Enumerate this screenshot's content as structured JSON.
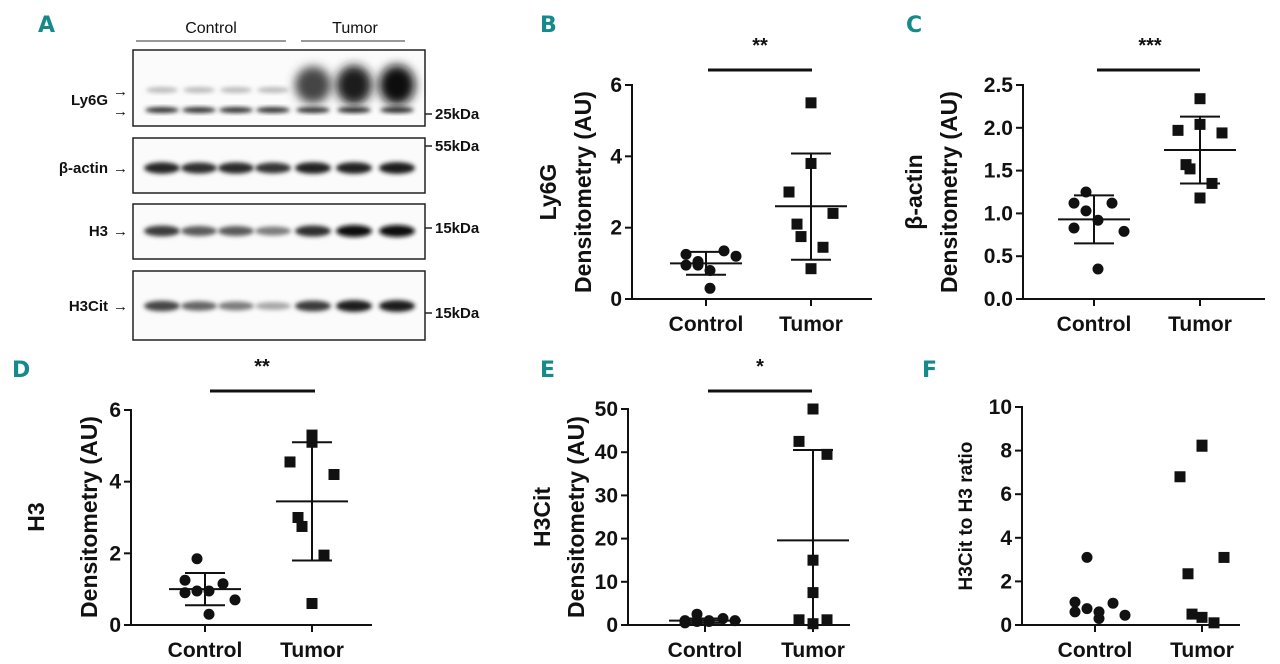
{
  "panel_letters": [
    "A",
    "B",
    "C",
    "D",
    "E",
    "F"
  ],
  "blot": {
    "groups": [
      "Control",
      "Tumor"
    ],
    "lanes": {
      "control": 4,
      "tumor": 3
    },
    "rows": [
      {
        "label": "Ly6G",
        "marker": "25kDa",
        "intensity": [
          0.35,
          0.35,
          0.33,
          0.3,
          0.75,
          0.95,
          1.0
        ]
      },
      {
        "label": "β-actin",
        "marker": "55kDa",
        "intensity": [
          0.9,
          0.85,
          0.88,
          0.82,
          0.92,
          0.92,
          0.95
        ]
      },
      {
        "label": "H3",
        "marker": "15kDa",
        "intensity": [
          0.8,
          0.65,
          0.65,
          0.5,
          0.85,
          1.0,
          1.0
        ]
      },
      {
        "label": "H3Cit",
        "marker": "15kDa",
        "intensity": [
          0.75,
          0.6,
          0.5,
          0.3,
          0.8,
          0.95,
          0.95
        ]
      }
    ]
  },
  "chart_data": [
    {
      "panel": "B",
      "type": "scatter",
      "title": "",
      "ylabel": [
        "Ly6G",
        "Densitometry  (AU)"
      ],
      "categories": [
        "Control",
        "Tumor"
      ],
      "ylim": [
        0,
        6
      ],
      "yticks": [
        "0",
        "2",
        "4",
        "6"
      ],
      "significance": "**",
      "series": [
        {
          "name": "Control",
          "marker": "circle",
          "values": [
            1.05,
            1.25,
            1.35,
            0.95,
            0.8,
            0.95,
            1.2,
            0.3
          ],
          "mean": 1.0,
          "sd": [
            0.68,
            1.32
          ]
        },
        {
          "name": "Tumor",
          "marker": "square",
          "values": [
            5.5,
            3.8,
            3.0,
            2.4,
            2.1,
            1.75,
            1.45,
            0.85
          ],
          "mean": 2.6,
          "sd": [
            1.1,
            4.08
          ]
        }
      ]
    },
    {
      "panel": "C",
      "type": "scatter",
      "title": "",
      "ylabel": [
        "β-actin",
        "Densitometry  (AU)"
      ],
      "categories": [
        "Control",
        "Tumor"
      ],
      "ylim": [
        0,
        2.5
      ],
      "yticks": [
        "0.0",
        "0.5",
        "1.0",
        "1.5",
        "2.0",
        "2.5"
      ],
      "significance": "***",
      "series": [
        {
          "name": "Control",
          "marker": "circle",
          "values": [
            1.25,
            1.12,
            1.12,
            1.03,
            0.92,
            0.83,
            0.79,
            0.35
          ],
          "mean": 0.93,
          "sd": [
            0.65,
            1.21
          ]
        },
        {
          "name": "Tumor",
          "marker": "square",
          "values": [
            2.34,
            2.04,
            1.97,
            1.94,
            1.57,
            1.52,
            1.35,
            1.18
          ],
          "mean": 1.74,
          "sd": [
            1.35,
            2.13
          ]
        }
      ]
    },
    {
      "panel": "D",
      "type": "scatter",
      "title": "",
      "ylabel": [
        "H3",
        "Densitometry  (AU)"
      ],
      "categories": [
        "Control",
        "Tumor"
      ],
      "ylim": [
        0,
        6
      ],
      "yticks": [
        "0",
        "2",
        "4",
        "6"
      ],
      "significance": "**",
      "series": [
        {
          "name": "Control",
          "marker": "circle",
          "values": [
            1.85,
            1.25,
            1.15,
            0.95,
            0.95,
            0.9,
            0.7,
            0.3
          ],
          "mean": 1.0,
          "sd": [
            0.55,
            1.45
          ]
        },
        {
          "name": "Tumor",
          "marker": "square",
          "values": [
            5.3,
            5.1,
            4.55,
            4.2,
            3.0,
            2.75,
            1.95,
            0.6
          ],
          "mean": 3.45,
          "sd": [
            1.8,
            5.1
          ]
        }
      ]
    },
    {
      "panel": "E",
      "type": "scatter",
      "title": "",
      "ylabel": [
        "H3Cit",
        "Densitometry  (AU)"
      ],
      "categories": [
        "Control",
        "Tumor"
      ],
      "ylim": [
        0,
        50
      ],
      "yticks": [
        "0",
        "10",
        "20",
        "30",
        "40",
        "50"
      ],
      "significance": "*",
      "series": [
        {
          "name": "Control",
          "marker": "circle",
          "values": [
            0.8,
            1.0,
            1.5,
            2.5,
            1.0,
            0.5,
            1.0,
            0.8
          ],
          "mean": 1.0,
          "sd": [
            0.5,
            1.5
          ]
        },
        {
          "name": "Tumor",
          "marker": "square",
          "values": [
            50,
            42.5,
            39.5,
            15,
            7.5,
            1.2,
            0.3,
            1.2
          ],
          "mean": 19.6,
          "sd": [
            0,
            40.5
          ]
        }
      ]
    },
    {
      "panel": "F",
      "type": "scatter",
      "title": "",
      "ylabel": [
        "H3Cit to H3 ratio"
      ],
      "categories": [
        "Control",
        "Tumor"
      ],
      "ylim": [
        0,
        10
      ],
      "yticks": [
        "0",
        "2",
        "4",
        "6",
        "8",
        "10"
      ],
      "significance": "",
      "series": [
        {
          "name": "Control",
          "marker": "circle",
          "values": [
            3.1,
            1.05,
            1.0,
            0.75,
            0.6,
            0.6,
            0.45,
            0.3
          ]
        },
        {
          "name": "Tumor",
          "marker": "square",
          "values": [
            8.2,
            8.25,
            6.8,
            3.1,
            2.35,
            0.5,
            0.1,
            0.35
          ]
        }
      ]
    }
  ]
}
